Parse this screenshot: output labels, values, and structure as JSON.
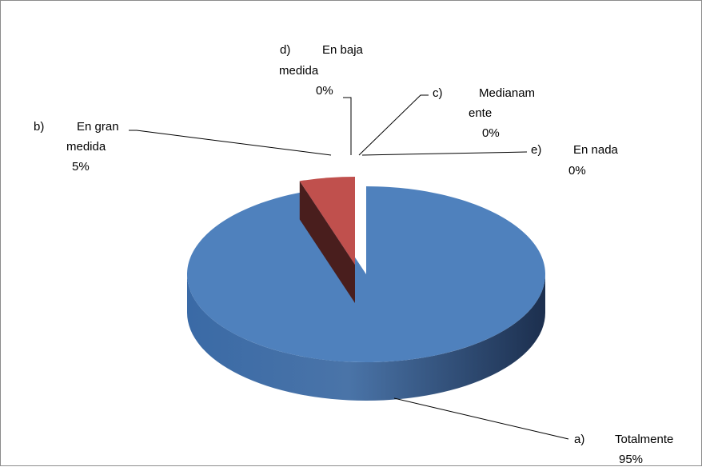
{
  "chart_data": {
    "type": "pie",
    "style": "3d-exploded",
    "categories": [
      "a)",
      "b)",
      "c)",
      "d)",
      "e)"
    ],
    "labels": [
      "Totalmente",
      "En gran medida",
      "Medianamente",
      "En baja medida",
      "En nada"
    ],
    "values": [
      95,
      5,
      0,
      0,
      0
    ],
    "percent_labels": [
      "95%",
      "5%",
      "0%",
      "0%",
      "0%"
    ],
    "colors": [
      "#4f81bd",
      "#c0504d",
      "#9bbb59",
      "#8064a2",
      "#4bacc6"
    ],
    "title": "",
    "legend": "none",
    "data_labels": "callouts"
  },
  "callouts": {
    "a": {
      "letter": "a)",
      "text": "Totalmente",
      "pct": "95%"
    },
    "b": {
      "letter": "b)",
      "text1": "En gran",
      "text2": "medida",
      "pct": "5%"
    },
    "c": {
      "letter": "c)",
      "text1": "Medianam",
      "text2": "ente",
      "pct": "0%"
    },
    "d": {
      "letter": "d)",
      "text1": "En baja",
      "text2": "medida",
      "pct": "0%"
    },
    "e": {
      "letter": "e)",
      "text": "En nada",
      "pct": "0%"
    }
  }
}
